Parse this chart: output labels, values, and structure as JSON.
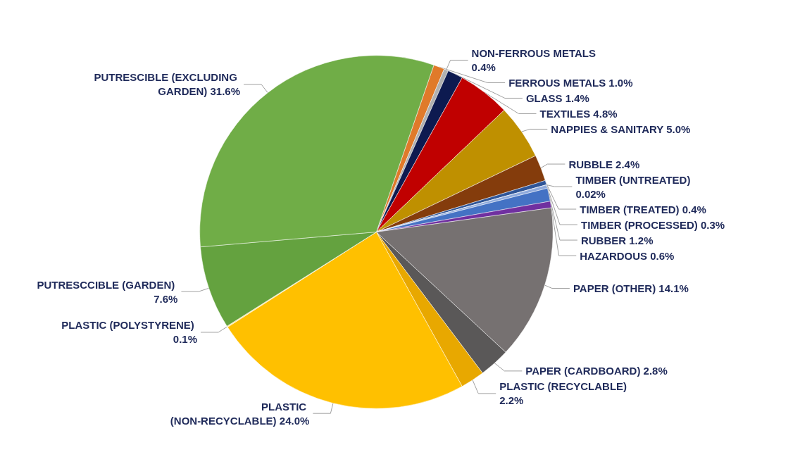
{
  "chart_data": {
    "type": "pie",
    "categories": [
      "FERROUS METALS",
      "NON-FERROUS METALS",
      "GLASS",
      "TEXTILES",
      "NAPPIES & SANITARY",
      "RUBBLE",
      "TIMBER (TREATED)",
      "TIMBER (UNTREATED)",
      "TIMBER (PROCESSED)",
      "RUBBER",
      "HAZARDOUS",
      "PAPER (OTHER)",
      "PAPER (CARDBOARD)",
      "PLASTIC (RECYCLABLE)",
      "PLASTIC (NON-RECYCLABLE)",
      "PLASTIC (POLYSTYRENE)",
      "PUTRESCCIBLE (GARDEN)",
      "PUTRESCIBLE (EXCLUDING GARDEN)"
    ],
    "values": [
      1.0,
      0.4,
      1.4,
      4.8,
      5.0,
      2.4,
      0.4,
      0.02,
      0.3,
      1.2,
      0.6,
      14.1,
      2.8,
      2.2,
      24.0,
      0.1,
      7.6,
      31.6
    ],
    "value_labels": [
      "1.0%",
      "0.4%",
      "1.4%",
      "4.8%",
      "5.0%",
      "2.4%",
      "0.4%",
      "0.02%",
      "0.3%",
      "1.2%",
      "0.6%",
      "14.1%",
      "2.8%",
      "2.2%",
      "24.0%",
      "0.1%",
      "7.6%",
      "31.6%"
    ],
    "colors": [
      "#e07a2a",
      "#b0b0b0",
      "#0d1a50",
      "#c00000",
      "#bf9000",
      "#843c0c",
      "#2f5597",
      "#5b8bd6",
      "#8faadc",
      "#4472c4",
      "#7030a0",
      "#767171",
      "#5a5858",
      "#e8a800",
      "#ffc000",
      "#ffe699",
      "#64a23f",
      "#70ad47"
    ]
  }
}
